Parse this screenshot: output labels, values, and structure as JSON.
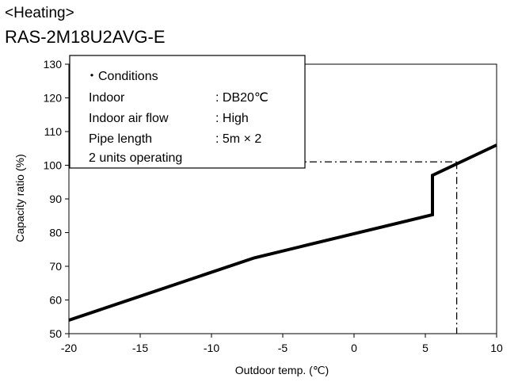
{
  "header": {
    "heading": "<Heating>",
    "model": "RAS-2M18U2AVG-E"
  },
  "conditions": {
    "title": "・Conditions",
    "rows": [
      {
        "label": "Indoor",
        "value": ": DB20℃"
      },
      {
        "label": "Indoor air flow",
        "value": ": High"
      },
      {
        "label": "Pipe length",
        "value": ": 5m × 2"
      }
    ],
    "footer": "2 units operating"
  },
  "chart_data": {
    "type": "line",
    "title": "",
    "xlabel": "Outdoor temp.  (℃)",
    "ylabel": "Capacity ratio  (%)",
    "xlim": [
      -20,
      10
    ],
    "ylim": [
      50,
      130
    ],
    "xticks": [
      -20,
      -15,
      -10,
      -5,
      0,
      5,
      10
    ],
    "yticks": [
      50,
      60,
      70,
      80,
      90,
      100,
      110,
      120,
      130
    ],
    "grid": false,
    "series": [
      {
        "x": [
          -20,
          -7,
          5.5,
          5.5,
          10
        ],
        "y": [
          54,
          72.5,
          85.3,
          97,
          106
        ]
      }
    ],
    "reference": {
      "x": 7.2,
      "y": 101
    }
  }
}
